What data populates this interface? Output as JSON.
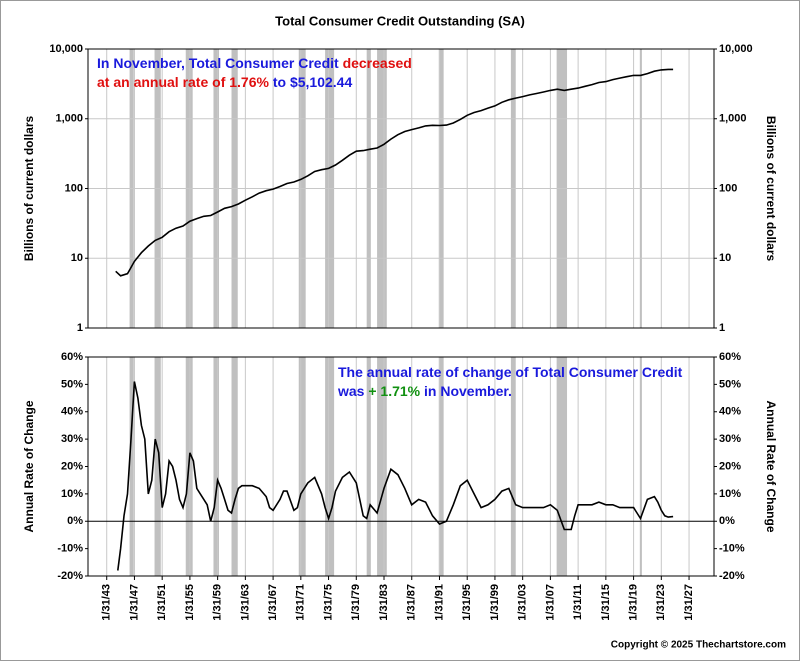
{
  "chart_data": [
    {
      "type": "line",
      "title": "Total Consumer Credit Outstanding (SA)",
      "y_label": "Billions of current dollars",
      "yscale": "log",
      "color": "#000000",
      "ylim": [
        1,
        10000
      ],
      "yticks": [
        1,
        10,
        100,
        {
          "value": 1000,
          "label": "1,000"
        },
        {
          "value": 10000,
          "label": "10,000"
        }
      ],
      "grid": true,
      "xlim": [
        1940.3,
        2030.6
      ],
      "annotation": [
        [
          {
            "text": "In November, Total Consumer Credit",
            "color": "#1a1adc"
          },
          {
            "text": "decreased",
            "color": "#e01010"
          }
        ],
        [
          {
            "text": "at an annual rate of 1.76%",
            "color": "#e01010"
          },
          {
            "text": "to $5,102.44",
            "color": "#1a1adc"
          }
        ]
      ],
      "recession_color": "#c0c0c0",
      "recessions": [
        [
          1946.3,
          1946.9
        ],
        [
          1949.9,
          1950.8
        ],
        [
          1954.4,
          1955.4
        ],
        [
          1958.4,
          1959.2
        ],
        [
          1961.0,
          1961.9
        ],
        [
          1970.7,
          1971.7
        ],
        [
          1974.5,
          1975.8
        ],
        [
          1980.5,
          1981.1
        ],
        [
          1982.0,
          1983.4
        ],
        [
          1990.9,
          1991.6
        ],
        [
          2001.3,
          2002.0
        ],
        [
          2007.9,
          2009.4
        ],
        [
          2019.9,
          2020.2
        ]
      ],
      "x": [
        1944.3,
        1945,
        1946,
        1947,
        1948,
        1949,
        1950,
        1951,
        1952,
        1953,
        1954,
        1955,
        1956,
        1957,
        1958,
        1959,
        1960,
        1961,
        1962,
        1963,
        1964,
        1965,
        1966,
        1967,
        1968,
        1969,
        1970,
        1971,
        1972,
        1973,
        1974,
        1975,
        1976,
        1977,
        1978,
        1979,
        1980,
        1981,
        1982,
        1983,
        1984,
        1985,
        1986,
        1987,
        1988,
        1989,
        1990,
        1991,
        1992,
        1993,
        1994,
        1995,
        1996,
        1997,
        1998,
        1999,
        2000,
        2001,
        2002,
        2003,
        2004,
        2005,
        2006,
        2007,
        2008,
        2009,
        2010,
        2011,
        2012,
        2013,
        2014,
        2015,
        2016,
        2017,
        2018,
        2019,
        2020,
        2021,
        2022,
        2023,
        2024,
        2024.7
      ],
      "values": [
        6.5,
        5.6,
        6,
        9,
        12,
        15,
        18,
        20,
        24,
        27,
        29,
        34,
        37,
        40,
        41,
        46,
        52,
        55,
        60,
        68,
        76,
        86,
        93,
        98,
        107,
        118,
        124,
        135,
        152,
        175,
        186,
        194,
        217,
        254,
        300,
        343,
        350,
        366,
        381,
        430,
        510,
        590,
        656,
        700,
        740,
        790,
        805,
        800,
        810,
        870,
        980,
        1120,
        1230,
        1310,
        1420,
        1530,
        1720,
        1870,
        1980,
        2080,
        2200,
        2300,
        2420,
        2550,
        2650,
        2550,
        2650,
        2750,
        2920,
        3090,
        3310,
        3410,
        3640,
        3830,
        4010,
        4190,
        4180,
        4440,
        4800,
        5010,
        5100,
        5102.44
      ]
    },
    {
      "type": "line",
      "y_label": "Annual Rate of Change",
      "color": "#000000",
      "ylim": [
        -20,
        60
      ],
      "yticks": [
        {
          "value": -20,
          "label": "-20%"
        },
        {
          "value": -10,
          "label": "-10%"
        },
        {
          "value": 0,
          "label": "0%"
        },
        {
          "value": 10,
          "label": "10%"
        },
        {
          "value": 20,
          "label": "20%"
        },
        {
          "value": 30,
          "label": "30%"
        },
        {
          "value": 40,
          "label": "40%"
        },
        {
          "value": 50,
          "label": "50%"
        },
        {
          "value": 60,
          "label": "60%"
        }
      ],
      "zero_line": true,
      "xlim": [
        1940.3,
        2030.6
      ],
      "xticks": [
        {
          "value": 1943,
          "label": "1/31/43"
        },
        {
          "value": 1947,
          "label": "1/31/47"
        },
        {
          "value": 1951,
          "label": "1/31/51"
        },
        {
          "value": 1955,
          "label": "1/31/55"
        },
        {
          "value": 1959,
          "label": "1/31/59"
        },
        {
          "value": 1963,
          "label": "1/31/63"
        },
        {
          "value": 1967,
          "label": "1/31/67"
        },
        {
          "value": 1971,
          "label": "1/31/71"
        },
        {
          "value": 1975,
          "label": "1/31/75"
        },
        {
          "value": 1979,
          "label": "1/31/79"
        },
        {
          "value": 1983,
          "label": "1/31/83"
        },
        {
          "value": 1987,
          "label": "1/31/87"
        },
        {
          "value": 1991,
          "label": "1/31/91"
        },
        {
          "value": 1995,
          "label": "1/31/95"
        },
        {
          "value": 1999,
          "label": "1/31/99"
        },
        {
          "value": 2003,
          "label": "1/31/03"
        },
        {
          "value": 2007,
          "label": "1/31/07"
        },
        {
          "value": 2011,
          "label": "1/31/11"
        },
        {
          "value": 2015,
          "label": "1/31/15"
        },
        {
          "value": 2019,
          "label": "1/31/19"
        },
        {
          "value": 2023,
          "label": "1/31/23"
        },
        {
          "value": 2027,
          "label": "1/31/27"
        }
      ],
      "annotation": [
        [
          {
            "text": "The annual rate of change of Total Consumer Credit",
            "color": "#1a1adc"
          }
        ],
        [
          {
            "text": "was",
            "color": "#1a1adc"
          },
          {
            "text": "+ 1.71%",
            "color": "#109010"
          },
          {
            "text": "in November.",
            "color": "#1a1adc"
          }
        ]
      ],
      "x": [
        1944.6,
        1945,
        1945.5,
        1946,
        1946.5,
        1947,
        1947.5,
        1948,
        1948.5,
        1949,
        1949.5,
        1950,
        1950.5,
        1951,
        1951.5,
        1952,
        1952.5,
        1953,
        1953.5,
        1954,
        1954.5,
        1955,
        1955.5,
        1956,
        1956.5,
        1957,
        1957.5,
        1958,
        1958.5,
        1959,
        1959.5,
        1960,
        1960.5,
        1961,
        1961.5,
        1962,
        1962.5,
        1963,
        1964,
        1965,
        1966,
        1966.5,
        1967,
        1968,
        1968.5,
        1969,
        1970,
        1970.5,
        1971,
        1972,
        1973,
        1974,
        1974.5,
        1975,
        1975.5,
        1976,
        1977,
        1978,
        1979,
        1980,
        1980.5,
        1981,
        1982,
        1983,
        1984,
        1985,
        1986,
        1987,
        1988,
        1989,
        1990,
        1991,
        1992,
        1993,
        1994,
        1995,
        1996,
        1997,
        1998,
        1999,
        2000,
        2001,
        2002,
        2003,
        2004,
        2005,
        2006,
        2007,
        2008,
        2009,
        2010,
        2010.5,
        2011,
        2012,
        2013,
        2014,
        2015,
        2016,
        2017,
        2018,
        2019,
        2020,
        2021,
        2022,
        2022.5,
        2023,
        2023.5,
        2024,
        2024.7
      ],
      "values": [
        -18,
        -10,
        2,
        10,
        30,
        51,
        45,
        35,
        30,
        10,
        15,
        30,
        25,
        5,
        10,
        22,
        20,
        15,
        8,
        5,
        10,
        25,
        22,
        12,
        10,
        8,
        6,
        0,
        5,
        15,
        12,
        8,
        4,
        3,
        8,
        12,
        13,
        13,
        13,
        12,
        9,
        5,
        4,
        8,
        11,
        11,
        4,
        5,
        10,
        14,
        16,
        10,
        5,
        1,
        5,
        11,
        16,
        18,
        14,
        2,
        1,
        6,
        3,
        12,
        19,
        17,
        12,
        6,
        8,
        7,
        2,
        -1,
        0,
        6,
        13,
        15,
        10,
        5,
        6,
        8,
        11,
        12,
        6,
        5,
        5,
        5,
        5,
        6,
        4,
        -3,
        -3,
        2,
        6,
        6,
        6,
        7,
        6,
        6,
        5,
        5,
        5,
        1,
        8,
        9,
        7,
        4,
        2,
        1.5,
        1.71
      ]
    }
  ],
  "footer": "Copyright © 2025 Thechartstore.com"
}
